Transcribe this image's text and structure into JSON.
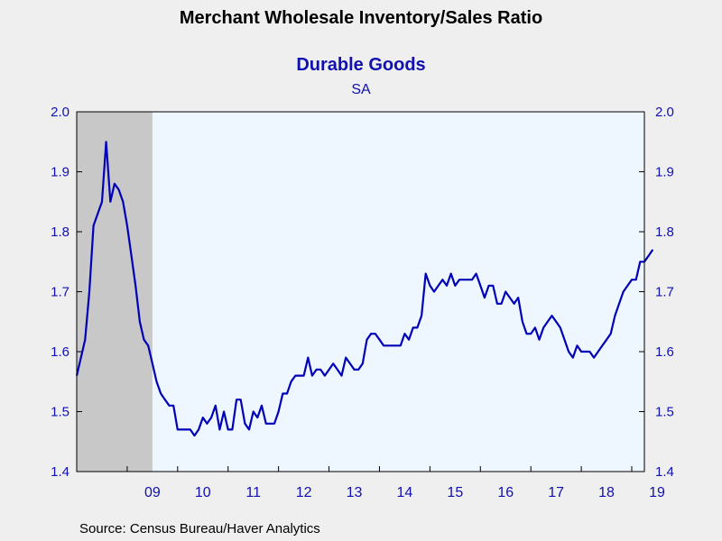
{
  "chart_data": {
    "type": "line",
    "title": "Merchant Wholesale Inventory/Sales Ratio",
    "subtitle": "Durable Goods",
    "note": "SA",
    "source": "Source:  Census Bureau/Haver Analytics",
    "ylim": [
      1.4,
      2.0
    ],
    "y_ticks": [
      "1.4",
      "1.5",
      "1.6",
      "1.7",
      "1.8",
      "1.9",
      "2.0"
    ],
    "x_range": [
      2008.0,
      2019.25
    ],
    "x_ticks": [
      {
        "label": "09",
        "year": 2009
      },
      {
        "label": "10",
        "year": 2010
      },
      {
        "label": "11",
        "year": 2011
      },
      {
        "label": "12",
        "year": 2012
      },
      {
        "label": "13",
        "year": 2013
      },
      {
        "label": "14",
        "year": 2014
      },
      {
        "label": "15",
        "year": 2015
      },
      {
        "label": "16",
        "year": 2016
      },
      {
        "label": "17",
        "year": 2017
      },
      {
        "label": "18",
        "year": 2018
      },
      {
        "label": "19",
        "year": 2019
      }
    ],
    "recession": {
      "start": 2008.0,
      "end": 2009.5
    },
    "colors": {
      "line": "#0000b8",
      "axis_text": "#1010b0",
      "plot_bg": "#eef6ff",
      "recession": "#c8c8c8",
      "frame": "#000000"
    },
    "series": [
      {
        "start": "2008-01",
        "frequency": "monthly",
        "values": [
          1.56,
          1.59,
          1.62,
          1.7,
          1.81,
          1.83,
          1.85,
          1.95,
          1.85,
          1.88,
          1.87,
          1.85,
          1.81,
          1.76,
          1.71,
          1.65,
          1.62,
          1.61,
          1.58,
          1.55,
          1.53,
          1.52,
          1.51,
          1.51,
          1.47,
          1.47,
          1.47,
          1.47,
          1.46,
          1.47,
          1.49,
          1.48,
          1.49,
          1.51,
          1.47,
          1.5,
          1.47,
          1.47,
          1.52,
          1.52,
          1.48,
          1.47,
          1.5,
          1.49,
          1.51,
          1.48,
          1.48,
          1.48,
          1.5,
          1.53,
          1.53,
          1.55,
          1.56,
          1.56,
          1.56,
          1.59,
          1.56,
          1.57,
          1.57,
          1.56,
          1.57,
          1.58,
          1.57,
          1.56,
          1.59,
          1.58,
          1.57,
          1.57,
          1.58,
          1.62,
          1.63,
          1.63,
          1.62,
          1.61,
          1.61,
          1.61,
          1.61,
          1.61,
          1.63,
          1.62,
          1.64,
          1.64,
          1.66,
          1.73,
          1.71,
          1.7,
          1.71,
          1.72,
          1.71,
          1.73,
          1.71,
          1.72,
          1.72,
          1.72,
          1.72,
          1.73,
          1.71,
          1.69,
          1.71,
          1.71,
          1.68,
          1.68,
          1.7,
          1.69,
          1.68,
          1.69,
          1.65,
          1.63,
          1.63,
          1.64,
          1.62,
          1.64,
          1.65,
          1.66,
          1.65,
          1.64,
          1.62,
          1.6,
          1.59,
          1.61,
          1.6,
          1.6,
          1.6,
          1.59,
          1.6,
          1.61,
          1.62,
          1.63,
          1.66,
          1.68,
          1.7,
          1.71,
          1.72,
          1.72,
          1.75,
          1.75,
          1.76,
          1.77
        ]
      }
    ]
  }
}
